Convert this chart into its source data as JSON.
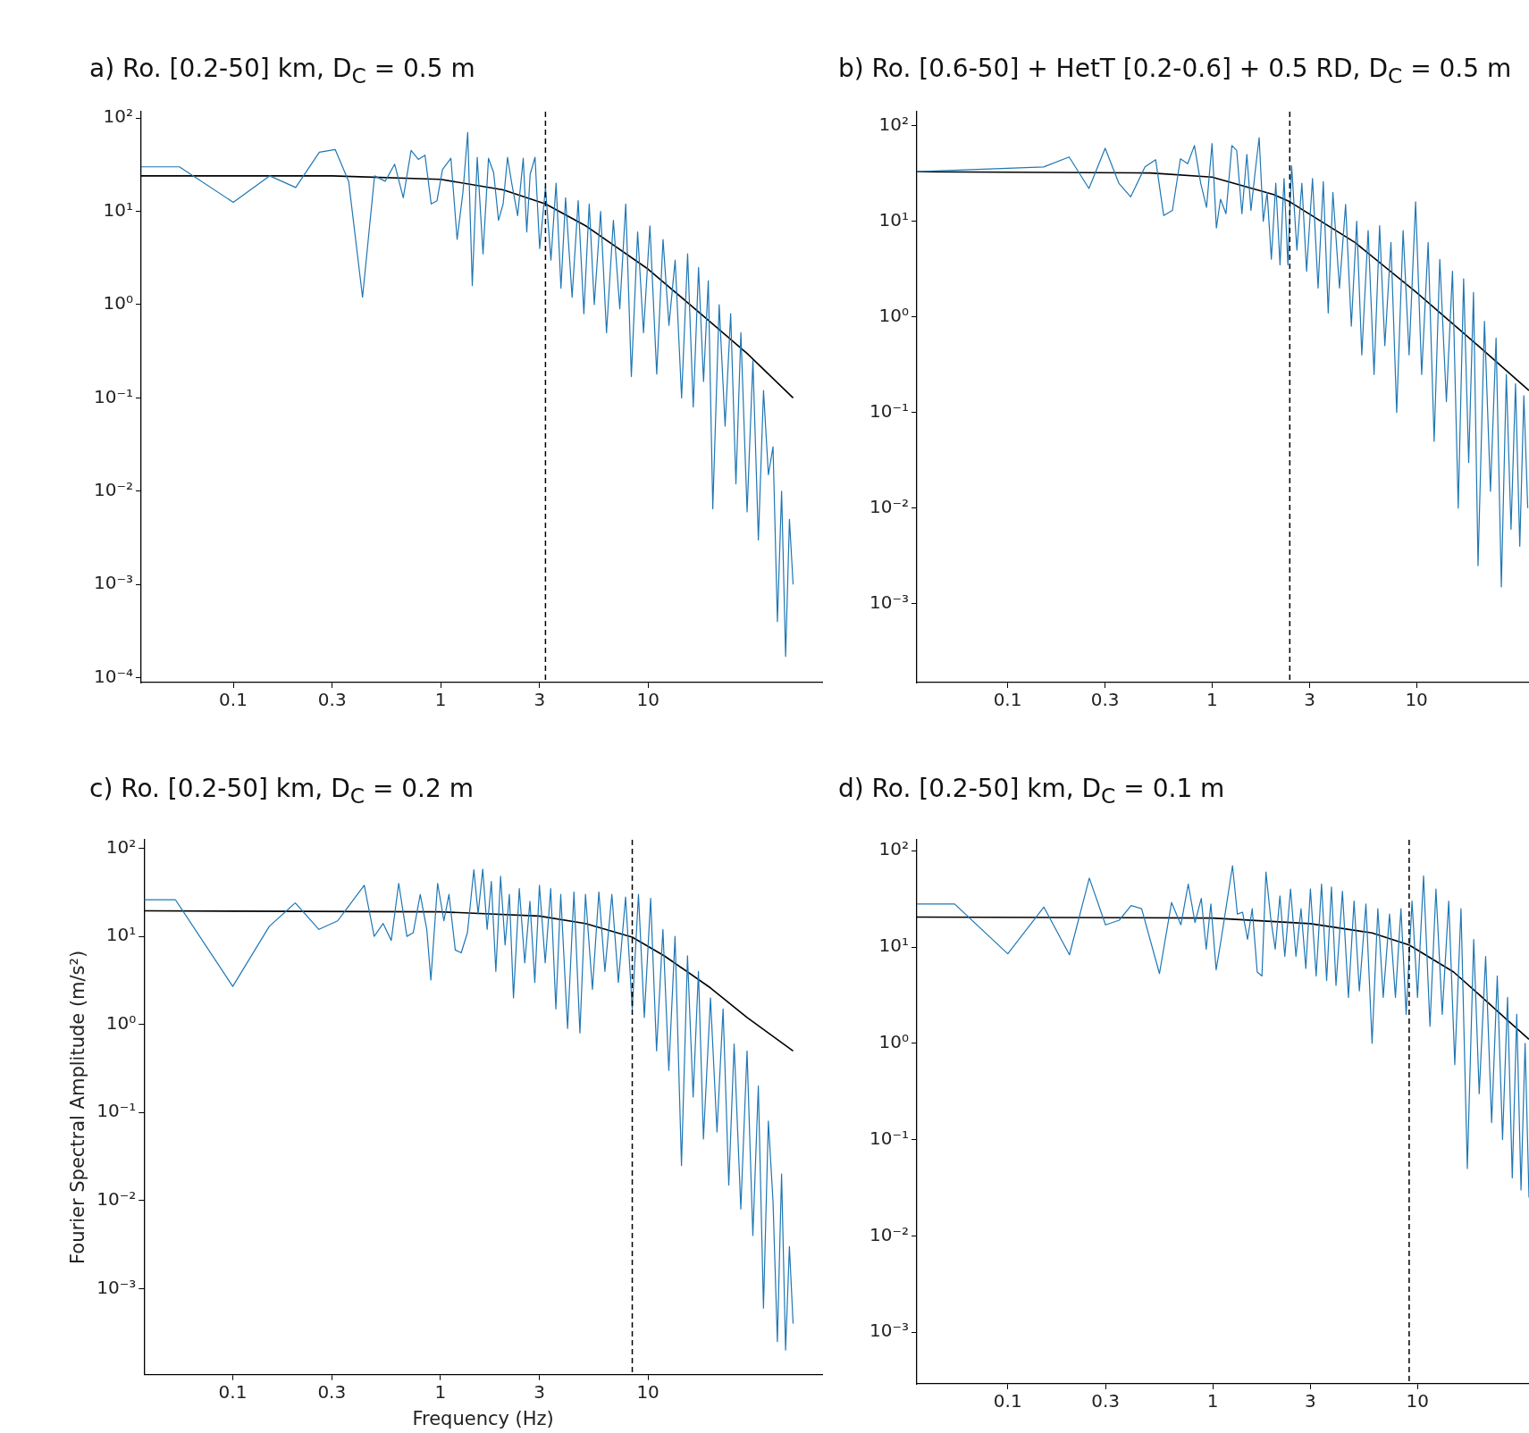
{
  "chart_data": [
    {
      "type": "line",
      "title": "a) Ro. [0.2-50] km, D$_{C}$ = 0.5 m",
      "log": "xy",
      "xlim": [
        0.036,
        69
      ],
      "ylim": [
        8.9e-05,
        117
      ],
      "xticks": [
        0.1,
        0.3,
        1,
        3,
        10
      ],
      "yticks": [
        {
          "value": 100,
          "label": "10²"
        },
        {
          "value": 10,
          "label": "10¹"
        },
        {
          "value": 1,
          "label": "10⁰"
        },
        {
          "value": 0.1,
          "label": "10⁻¹"
        },
        {
          "value": 0.01,
          "label": "10⁻²"
        },
        {
          "value": 0.001,
          "label": "10⁻³"
        },
        {
          "value": 0.0001,
          "label": "10⁻⁴"
        }
      ],
      "ref_lines": [
        {
          "axis": "x",
          "value": 3.2,
          "color": "#000000",
          "line_style": "dashed"
        }
      ],
      "series": [
        {
          "color": "#1f77b4",
          "x": [
            0.036,
            0.055,
            0.1,
            0.15,
            0.2,
            0.26,
            0.31,
            0.36,
            0.42,
            0.48,
            0.54,
            0.6,
            0.66,
            0.72,
            0.78,
            0.84,
            0.9,
            0.96,
            1.02,
            1.12,
            1.2,
            1.28,
            1.35,
            1.42,
            1.5,
            1.6,
            1.7,
            1.8,
            1.9,
            2.0,
            2.1,
            2.2,
            2.35,
            2.5,
            2.6,
            2.7,
            2.85,
            3.0,
            3.2,
            3.4,
            3.6,
            3.8,
            4.0,
            4.3,
            4.6,
            4.9,
            5.2,
            5.5,
            5.9,
            6.3,
            6.8,
            7.3,
            7.8,
            8.3,
            8.9,
            9.5,
            10.2,
            11,
            11.8,
            12.6,
            13.5,
            14.5,
            15.5,
            16.5,
            17.5,
            18.5,
            19.5,
            20.5,
            22,
            23.5,
            25,
            26.5,
            28,
            30,
            32,
            34,
            36,
            38,
            40,
            42,
            44,
            46,
            48,
            50
          ],
          "values": [
            30,
            30,
            12.5,
            24,
            18,
            43,
            46,
            21,
            1.2,
            24,
            21,
            32,
            14,
            45,
            36,
            40,
            12,
            13,
            28,
            37,
            5,
            16,
            70,
            1.6,
            38,
            3.5,
            37,
            26,
            8,
            12,
            38,
            20,
            9,
            37,
            6,
            25,
            38,
            4,
            18,
            3,
            20,
            1.5,
            14,
            1.2,
            13,
            0.8,
            12,
            1.0,
            10,
            0.5,
            8,
            0.9,
            12,
            0.17,
            6,
            0.5,
            7,
            0.18,
            5,
            0.6,
            3,
            0.1,
            3.5,
            0.08,
            2.5,
            0.15,
            1.8,
            0.0065,
            1.0,
            0.05,
            0.8,
            0.012,
            0.5,
            0.006,
            0.25,
            0.003,
            0.12,
            0.015,
            0.03,
            0.0004,
            0.01,
            0.00017,
            0.005,
            0.001
          ]
        },
        {
          "color": "#000000",
          "x": [
            0.036,
            0.3,
            1,
            2,
            3.2,
            5,
            10,
            20,
            30,
            50
          ],
          "values": [
            24,
            24,
            22,
            17,
            12,
            7,
            2.4,
            0.65,
            0.3,
            0.1
          ]
        }
      ]
    },
    {
      "type": "line",
      "title": "b) Ro. [0.6-50] + HetT [0.2-0.6] + 0.5 RD, D$_{C}$ = 0.5 m",
      "log": "xy",
      "xlim": [
        0.036,
        35.5
      ],
      "ylim": [
        0.00015,
        140
      ],
      "xticks": [
        0.1,
        0.3,
        1,
        3,
        10
      ],
      "yticks": [
        {
          "value": 100,
          "label": "10²"
        },
        {
          "value": 10,
          "label": "10¹"
        },
        {
          "value": 1,
          "label": "10⁰"
        },
        {
          "value": 0.1,
          "label": "10⁻¹"
        },
        {
          "value": 0.01,
          "label": "10⁻²"
        },
        {
          "value": 0.001,
          "label": "10⁻³"
        }
      ],
      "ref_lines": [
        {
          "axis": "x",
          "value": 2.4,
          "color": "#000000",
          "line_style": "dashed"
        }
      ],
      "series": [
        {
          "color": "#1f77b4",
          "x": [
            0.036,
            0.15,
            0.2,
            0.25,
            0.3,
            0.35,
            0.4,
            0.47,
            0.53,
            0.58,
            0.64,
            0.7,
            0.76,
            0.82,
            0.88,
            0.94,
            1.0,
            1.05,
            1.1,
            1.17,
            1.25,
            1.32,
            1.4,
            1.48,
            1.55,
            1.63,
            1.7,
            1.78,
            1.86,
            1.95,
            2.05,
            2.15,
            2.25,
            2.35,
            2.45,
            2.6,
            2.75,
            2.9,
            3.1,
            3.3,
            3.5,
            3.7,
            3.9,
            4.2,
            4.5,
            4.8,
            5.1,
            5.4,
            5.8,
            6.2,
            6.6,
            7.0,
            7.5,
            8.0,
            8.6,
            9.2,
            9.9,
            10.6,
            11.4,
            12.2,
            13,
            14,
            15,
            16,
            17,
            18,
            19,
            20,
            21.5,
            23,
            24.5,
            26,
            27.5,
            29,
            30.5,
            32,
            33.5,
            35
          ],
          "values": [
            33,
            37,
            47,
            22,
            58,
            25,
            18,
            37,
            44,
            11.5,
            13,
            45,
            40,
            62,
            25,
            14,
            65,
            8.5,
            17,
            12,
            62,
            55,
            12,
            50,
            13,
            35,
            75,
            10,
            20,
            4,
            25,
            3.5,
            28,
            3.5,
            38,
            5,
            25,
            3,
            28,
            2.0,
            26,
            1.1,
            20,
            2,
            15,
            0.8,
            10,
            0.4,
            8,
            0.25,
            9,
            0.5,
            6,
            0.1,
            8,
            0.4,
            16,
            0.25,
            6,
            0.05,
            4,
            0.13,
            3,
            0.01,
            2.5,
            0.03,
            1.8,
            0.0025,
            0.9,
            0.015,
            0.6,
            0.0015,
            0.25,
            0.006,
            0.2,
            0.004,
            0.15,
            0.01
          ]
        },
        {
          "color": "#000000",
          "x": [
            0.036,
            0.5,
            1,
            2,
            2.4,
            5,
            10,
            20,
            35.5
          ],
          "values": [
            33,
            32,
            29,
            19,
            16,
            6,
            1.8,
            0.5,
            0.17
          ]
        }
      ]
    },
    {
      "type": "line",
      "title": "c) Ro. [0.2-50] km, D$_{C}$ = 0.2 m",
      "xlabel": "Frequency (Hz)",
      "ylabel": "Fourier Spectral Amplitude (m/s²)",
      "log": "xy",
      "xlim": [
        0.0374,
        69
      ],
      "ylim": [
        0.000105,
        125
      ],
      "xticks": [
        0.1,
        0.3,
        1,
        3,
        10
      ],
      "yticks": [
        {
          "value": 100,
          "label": "10²"
        },
        {
          "value": 10,
          "label": "10¹"
        },
        {
          "value": 1,
          "label": "10⁰"
        },
        {
          "value": 0.1,
          "label": "10⁻¹"
        },
        {
          "value": 0.01,
          "label": "10⁻²"
        },
        {
          "value": 0.001,
          "label": "10⁻³"
        }
      ],
      "ref_lines": [
        {
          "axis": "x",
          "value": 8.4,
          "color": "#000000",
          "line_style": "dashed"
        }
      ],
      "series": [
        {
          "color": "#1f77b4",
          "x": [
            0.0374,
            0.053,
            0.1,
            0.15,
            0.2,
            0.26,
            0.32,
            0.43,
            0.48,
            0.53,
            0.58,
            0.63,
            0.69,
            0.74,
            0.8,
            0.86,
            0.9,
            0.97,
            1.04,
            1.1,
            1.18,
            1.26,
            1.35,
            1.45,
            1.52,
            1.6,
            1.68,
            1.76,
            1.85,
            1.95,
            2.05,
            2.15,
            2.25,
            2.4,
            2.55,
            2.7,
            2.85,
            3.0,
            3.2,
            3.4,
            3.6,
            3.8,
            4.1,
            4.4,
            4.7,
            5.0,
            5.4,
            5.8,
            6.2,
            6.7,
            7.2,
            7.8,
            8.4,
            9.0,
            9.6,
            10.3,
            11,
            11.8,
            12.6,
            13.5,
            14.5,
            15.5,
            16.5,
            17.5,
            18.5,
            20,
            21.5,
            23,
            24.5,
            26,
            28,
            30,
            32,
            34,
            36,
            38,
            40,
            42,
            44,
            46,
            48,
            50
          ],
          "values": [
            26,
            26,
            2.7,
            13,
            24,
            12,
            15,
            38,
            10,
            14,
            9,
            40,
            10,
            11,
            30,
            12,
            3.2,
            40,
            15,
            30,
            7,
            6.5,
            11,
            57,
            18,
            58,
            12,
            42,
            4,
            48,
            8,
            30,
            2.0,
            35,
            5,
            25,
            3,
            38,
            5,
            35,
            1.5,
            30,
            0.9,
            32,
            0.8,
            30,
            2.5,
            32,
            4,
            30,
            3,
            28,
            1.5,
            30,
            1.2,
            27,
            0.5,
            12,
            0.3,
            10,
            0.025,
            6,
            0.15,
            4,
            0.05,
            2.0,
            0.06,
            1.5,
            0.015,
            0.6,
            0.008,
            0.5,
            0.004,
            0.2,
            0.0006,
            0.08,
            0.01,
            0.00025,
            0.02,
            0.0002,
            0.003,
            0.0004
          ]
        },
        {
          "color": "#000000",
          "x": [
            0.0374,
            1,
            3,
            5,
            8.4,
            12,
            20,
            30,
            50
          ],
          "values": [
            19.5,
            19,
            17,
            14,
            9.8,
            6,
            2.6,
            1.2,
            0.5
          ]
        }
      ]
    },
    {
      "type": "line",
      "title": "d) Ro. [0.2-50] km, D$_{C}$ = 0.1 m",
      "log": "xy",
      "xlim": [
        0.036,
        35
      ],
      "ylim": [
        0.00029,
        130
      ],
      "xticks": [
        0.1,
        0.3,
        1,
        3,
        10
      ],
      "yticks": [
        {
          "value": 100,
          "label": "10²"
        },
        {
          "value": 10,
          "label": "10¹"
        },
        {
          "value": 1,
          "label": "10⁰"
        },
        {
          "value": 0.1,
          "label": "10⁻¹"
        },
        {
          "value": 0.01,
          "label": "10⁻²"
        },
        {
          "value": 0.001,
          "label": "10⁻³"
        }
      ],
      "ref_lines": [
        {
          "axis": "x",
          "value": 9.1,
          "color": "#000000",
          "line_style": "dashed"
        }
      ],
      "series": [
        {
          "color": "#1f77b4",
          "x": [
            0.036,
            0.055,
            0.1,
            0.15,
            0.2,
            0.25,
            0.3,
            0.35,
            0.4,
            0.45,
            0.55,
            0.63,
            0.7,
            0.76,
            0.82,
            0.88,
            0.93,
            0.98,
            1.04,
            1.1,
            1.17,
            1.25,
            1.32,
            1.4,
            1.48,
            1.56,
            1.65,
            1.74,
            1.82,
            1.92,
            2.02,
            2.13,
            2.25,
            2.4,
            2.55,
            2.7,
            2.85,
            3.0,
            3.2,
            3.4,
            3.6,
            3.8,
            4.0,
            4.3,
            4.6,
            4.9,
            5.2,
            5.6,
            6.0,
            6.4,
            6.8,
            7.3,
            7.8,
            8.3,
            8.8,
            9.4,
            10,
            10.7,
            11.5,
            12.3,
            13.2,
            14.2,
            15.2,
            16.3,
            17.5,
            18.8,
            20,
            21.5,
            23,
            24.5,
            26,
            27.5,
            29,
            30.5,
            32,
            33.5,
            35
          ],
          "values": [
            28,
            28,
            8.5,
            26,
            8.3,
            52,
            17,
            19,
            27,
            25,
            5.3,
            29,
            17,
            45,
            18,
            32,
            9.5,
            28,
            5.8,
            12,
            28,
            70,
            22,
            23,
            12,
            25,
            5.5,
            5.0,
            60,
            20,
            9.5,
            34,
            8,
            40,
            8,
            25,
            6,
            40,
            5,
            45,
            4.5,
            42,
            4,
            38,
            3,
            30,
            3.5,
            28,
            1.0,
            25,
            3,
            22,
            3,
            25,
            2,
            30,
            3,
            55,
            1.5,
            40,
            2,
            30,
            0.6,
            25,
            0.05,
            12,
            0.3,
            8,
            0.15,
            5,
            0.1,
            3,
            0.04,
            2,
            0.03,
            1.0,
            0.025
          ]
        },
        {
          "color": "#000000",
          "x": [
            0.036,
            1,
            3,
            6,
            9.1,
            15,
            20,
            27,
            35
          ],
          "values": [
            20.5,
            20,
            17.5,
            14,
            10.5,
            5.5,
            3.2,
            1.8,
            1.1
          ]
        }
      ]
    }
  ]
}
